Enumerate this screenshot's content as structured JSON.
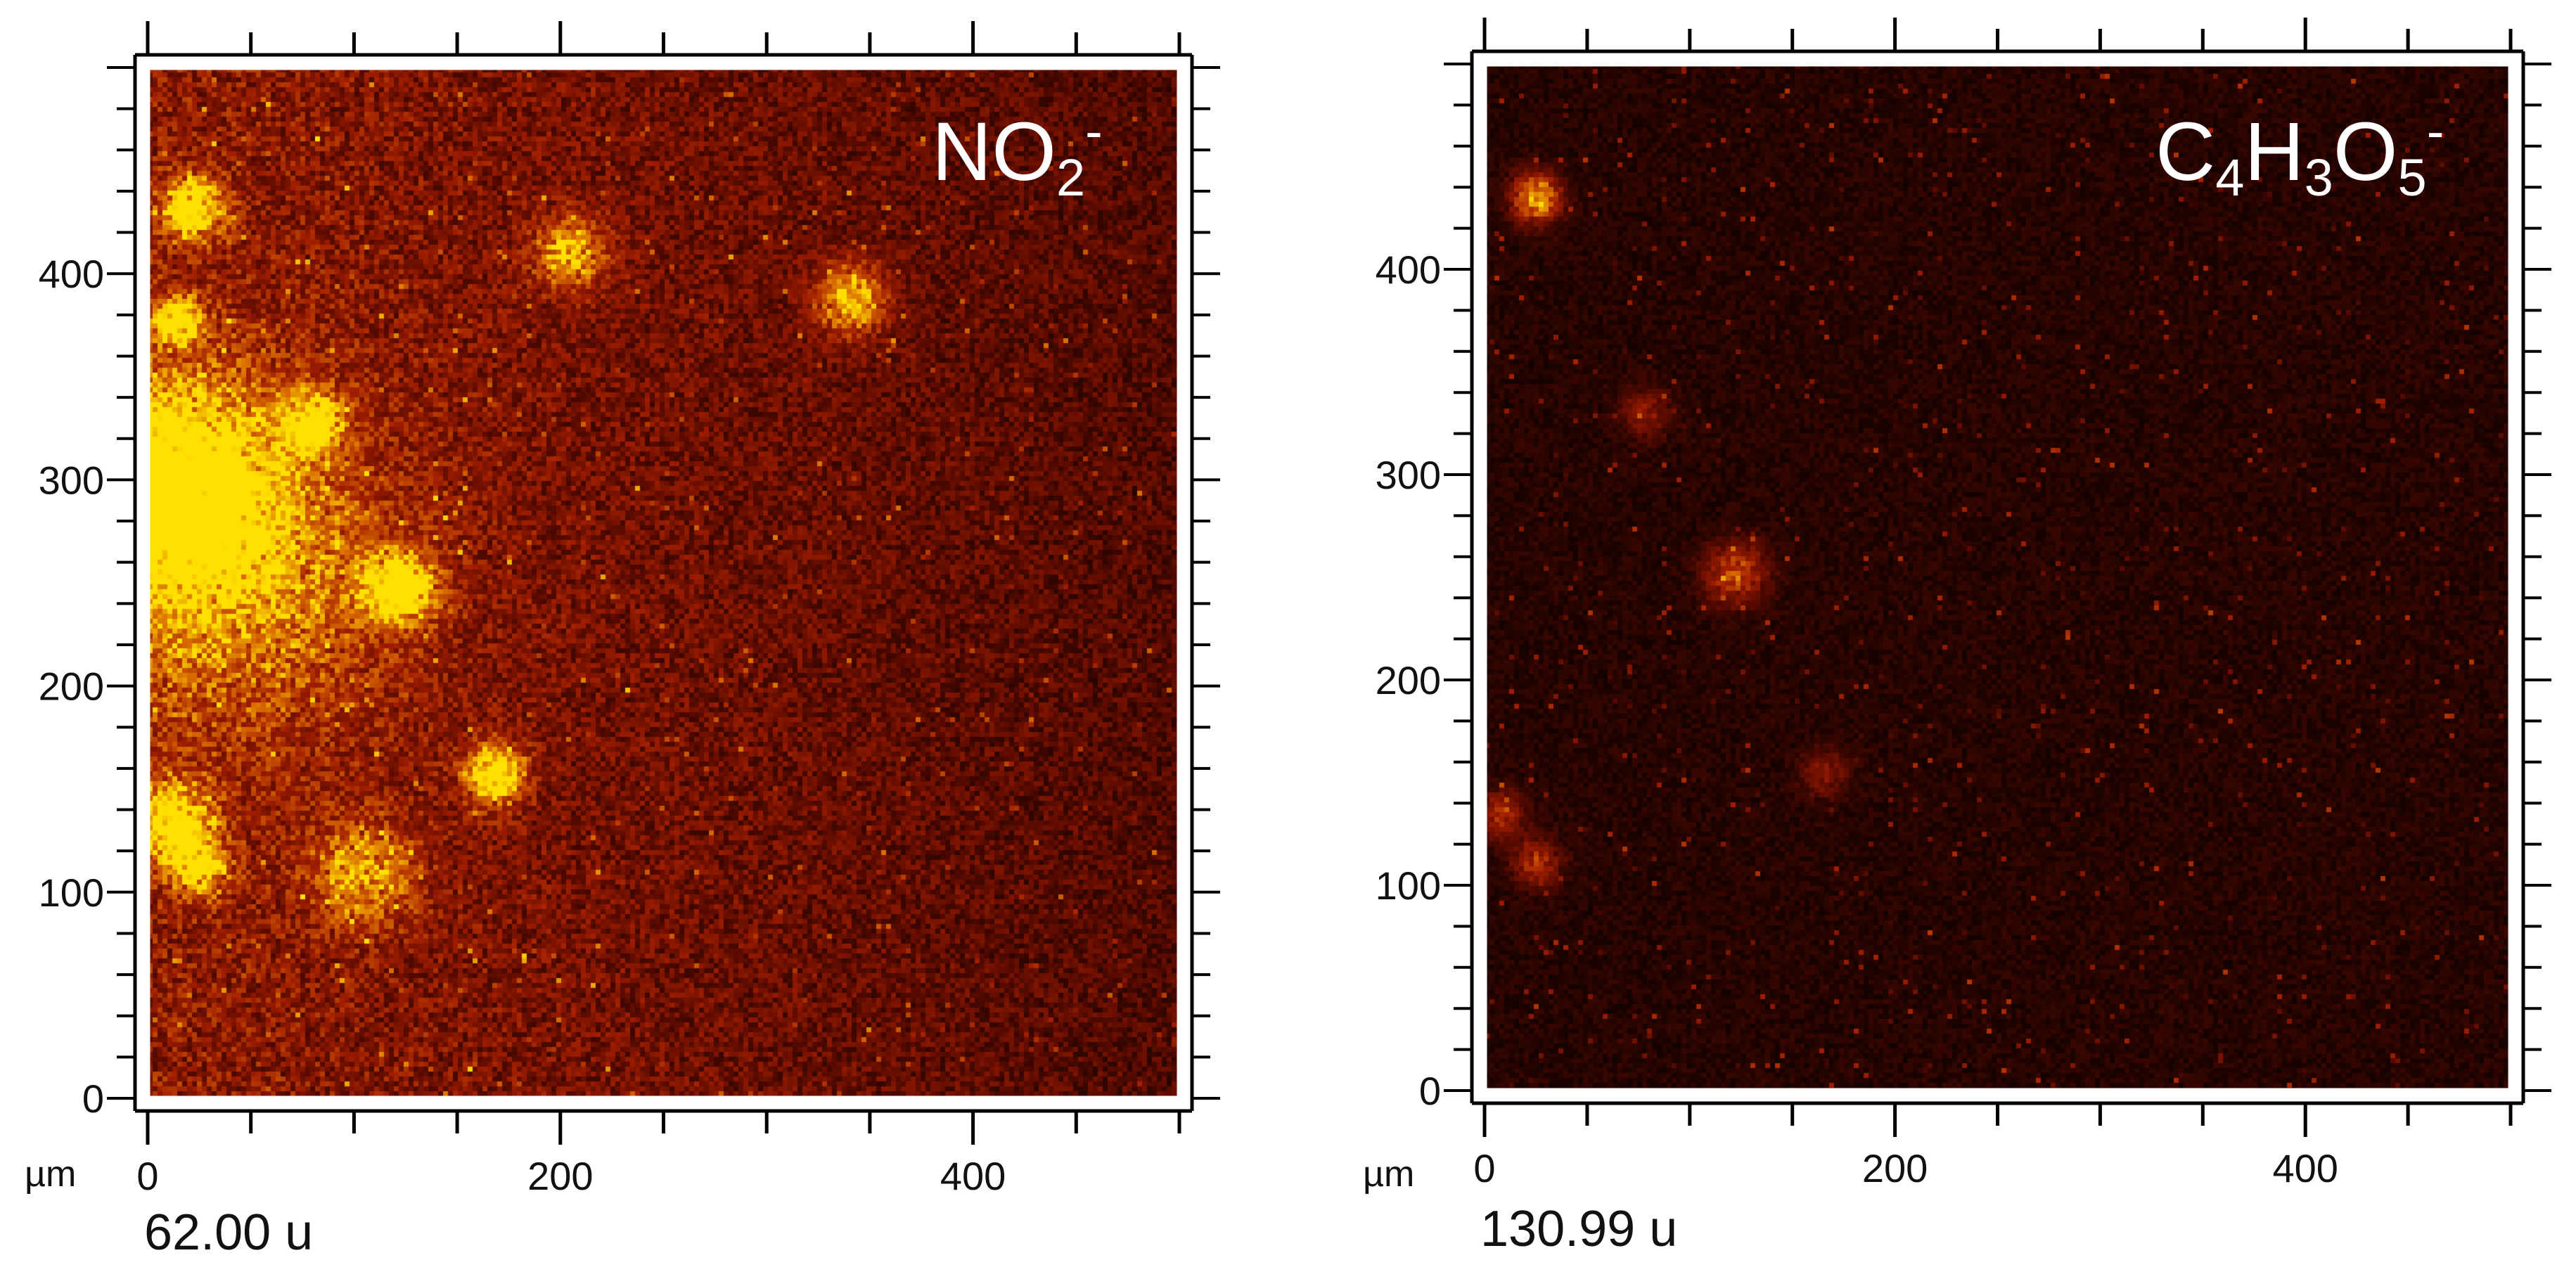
{
  "chart_data": [
    {
      "type": "heatmap",
      "ion_label": {
        "base": "NO",
        "subscript": "2",
        "superscript": "-"
      },
      "axis_unit": "µm",
      "x_ticks": [
        "0",
        "200",
        "400"
      ],
      "y_ticks": [
        "0",
        "100",
        "200",
        "300",
        "400"
      ],
      "xlim": [
        0,
        500
      ],
      "ylim": [
        0,
        500
      ],
      "colormap": [
        "#000000",
        "#5a0b00",
        "#a01e00",
        "#d86a00",
        "#ffe000"
      ],
      "background_intensity": 0.42,
      "total_counts": "62.00 u",
      "hotspots": [
        {
          "x": 22,
          "y": 432,
          "intensity": 1.0,
          "radius": 10
        },
        {
          "x": 15,
          "y": 378,
          "intensity": 0.9,
          "radius": 8
        },
        {
          "x": 205,
          "y": 410,
          "intensity": 0.7,
          "radius": 12
        },
        {
          "x": 340,
          "y": 388,
          "intensity": 0.75,
          "radius": 12
        },
        {
          "x": 80,
          "y": 328,
          "intensity": 0.75,
          "radius": 10
        },
        {
          "x": 8,
          "y": 298,
          "intensity": 0.85,
          "radius": 35
        },
        {
          "x": 122,
          "y": 248,
          "intensity": 0.95,
          "radius": 12
        },
        {
          "x": 168,
          "y": 158,
          "intensity": 1.0,
          "radius": 10
        },
        {
          "x": 12,
          "y": 135,
          "intensity": 0.8,
          "radius": 14
        },
        {
          "x": 25,
          "y": 112,
          "intensity": 0.7,
          "radius": 10
        },
        {
          "x": 105,
          "y": 110,
          "intensity": 0.55,
          "radius": 18
        },
        {
          "x": 40,
          "y": 260,
          "intensity": 0.5,
          "radius": 55
        }
      ]
    },
    {
      "type": "heatmap",
      "ion_label": {
        "parts": [
          [
            "C",
            ""
          ],
          [
            "4",
            "sub"
          ],
          [
            "H",
            ""
          ],
          [
            "3",
            "sub"
          ],
          [
            "O",
            ""
          ],
          [
            "5",
            "sub"
          ],
          [
            "-",
            "sup"
          ]
        ]
      },
      "axis_unit": "µm",
      "x_ticks": [
        "0",
        "200",
        "400"
      ],
      "y_ticks": [
        "0",
        "100",
        "200",
        "300",
        "400"
      ],
      "xlim": [
        0,
        500
      ],
      "ylim": [
        0,
        500
      ],
      "colormap": [
        "#000000",
        "#5a0b00",
        "#a01e00",
        "#d86a00",
        "#ffe000"
      ],
      "background_intensity": 0.12,
      "total_counts": "130.99 u",
      "hotspots": [
        {
          "x": 25,
          "y": 435,
          "intensity": 0.95,
          "radius": 8
        },
        {
          "x": 122,
          "y": 252,
          "intensity": 0.6,
          "radius": 10
        },
        {
          "x": 78,
          "y": 330,
          "intensity": 0.35,
          "radius": 8
        },
        {
          "x": 8,
          "y": 135,
          "intensity": 0.45,
          "radius": 8
        },
        {
          "x": 25,
          "y": 112,
          "intensity": 0.45,
          "radius": 8
        },
        {
          "x": 165,
          "y": 155,
          "intensity": 0.3,
          "radius": 8
        }
      ]
    }
  ]
}
